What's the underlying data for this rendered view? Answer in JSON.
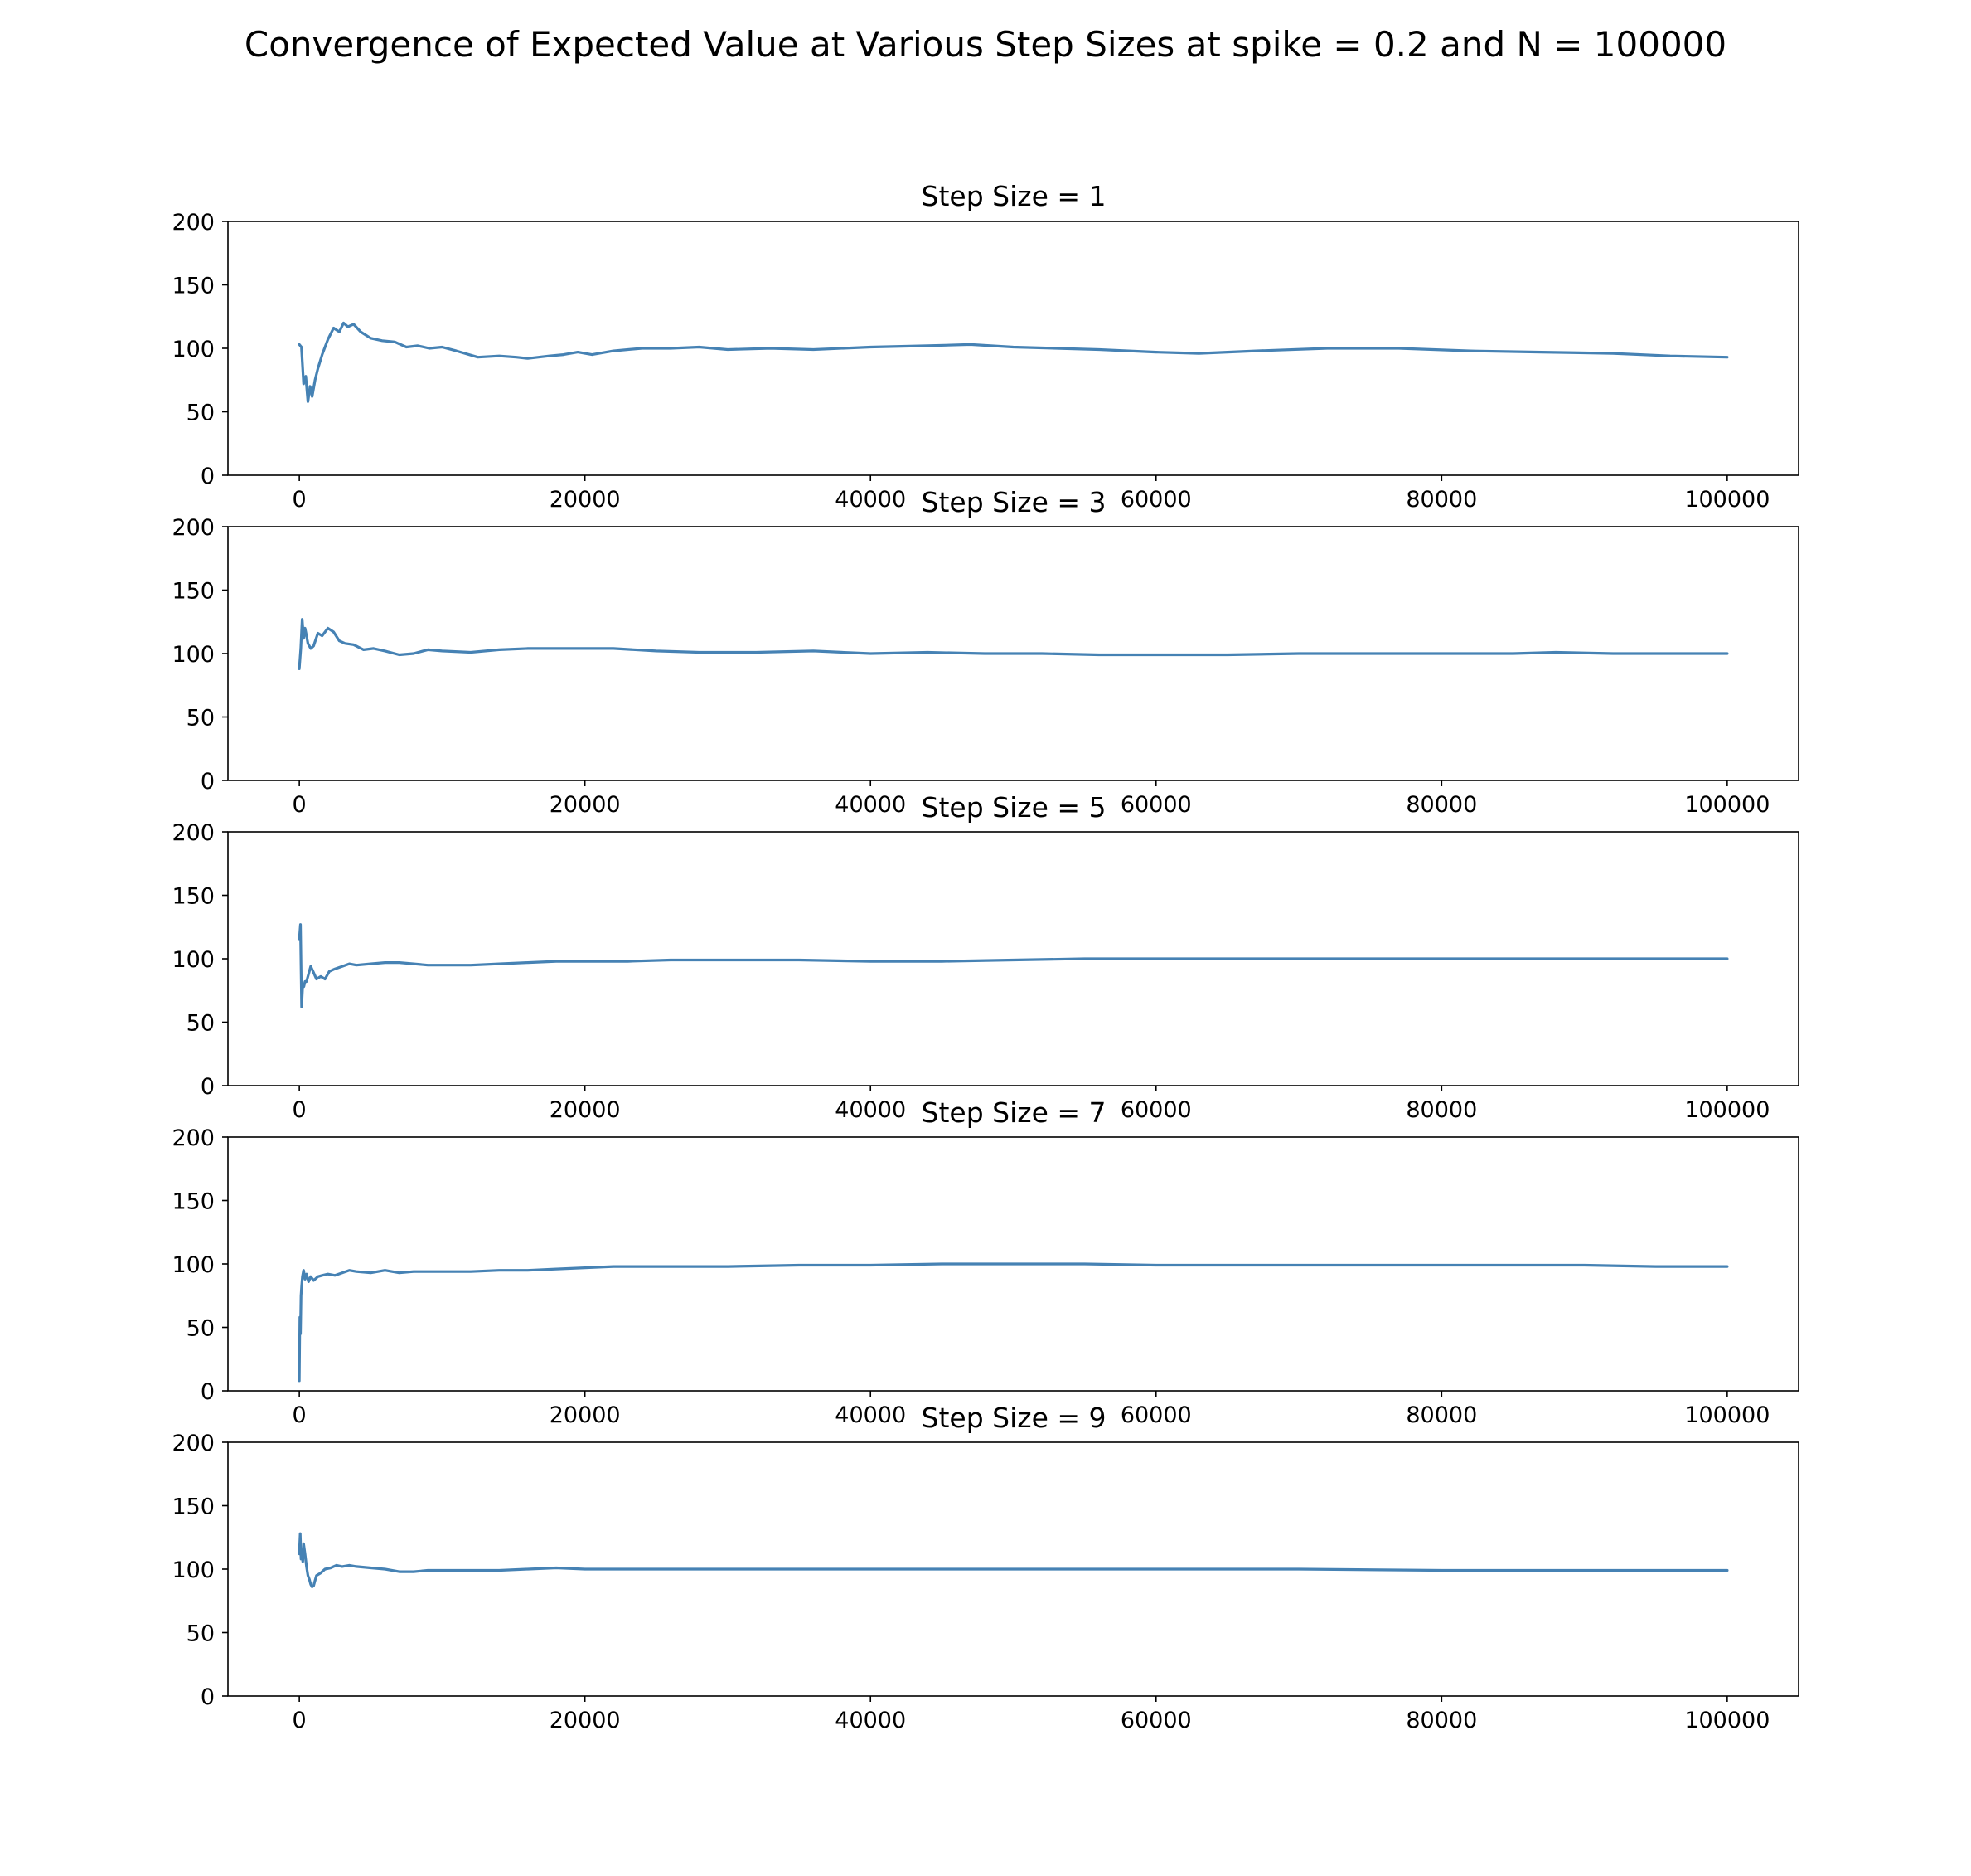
{
  "figure": {
    "title": "Convergence of Expected Value at Various Step Sizes at spike = 0.2 and N = 100000",
    "line_color": "#4682b4"
  },
  "chart_data": [
    {
      "type": "line",
      "title": "Step Size = 1",
      "xlabel": "",
      "ylabel": "",
      "xlim": [
        -5000,
        105000
      ],
      "ylim": [
        0,
        200
      ],
      "xticks": [
        0,
        20000,
        40000,
        60000,
        80000,
        100000
      ],
      "yticks": [
        0,
        50,
        100,
        150,
        200
      ],
      "grid": false,
      "x": [
        0,
        150,
        300,
        450,
        600,
        750,
        900,
        1100,
        1300,
        1600,
        2000,
        2400,
        2800,
        3100,
        3400,
        3800,
        4300,
        5000,
        5800,
        6700,
        7500,
        8300,
        9100,
        10000,
        11000,
        12500,
        14000,
        15200,
        16000,
        17500,
        18500,
        19500,
        20500,
        22000,
        24000,
        26000,
        28000,
        30000,
        33000,
        36000,
        40000,
        44000,
        47000,
        50000,
        53000,
        56000,
        60000,
        63000,
        67000,
        72000,
        77000,
        82000,
        87000,
        92000,
        96000,
        100000
      ],
      "values": [
        103,
        101,
        72,
        78,
        58,
        70,
        62,
        75,
        84,
        95,
        107,
        116,
        113,
        120,
        117,
        119,
        113,
        108,
        106,
        105,
        101,
        102,
        100,
        101,
        98,
        93,
        94,
        93,
        92,
        94,
        95,
        97,
        95,
        98,
        100,
        100,
        101,
        99,
        100,
        99,
        101,
        102,
        103,
        101,
        100,
        99,
        97,
        96,
        98,
        100,
        100,
        98,
        97,
        96,
        94,
        93
      ],
      "series_name": "series-1"
    },
    {
      "type": "line",
      "title": "Step Size = 3",
      "xlabel": "",
      "ylabel": "",
      "xlim": [
        -5000,
        105000
      ],
      "ylim": [
        0,
        200
      ],
      "xticks": [
        0,
        20000,
        40000,
        60000,
        80000,
        100000
      ],
      "yticks": [
        0,
        50,
        100,
        150,
        200
      ],
      "grid": false,
      "x": [
        0,
        100,
        200,
        300,
        400,
        500,
        600,
        800,
        1000,
        1300,
        1600,
        2000,
        2400,
        2800,
        3200,
        3800,
        4500,
        5200,
        6000,
        7000,
        8000,
        9000,
        10000,
        12000,
        14000,
        16000,
        18000,
        20000,
        22000,
        25000,
        28000,
        32000,
        36000,
        40000,
        44000,
        48000,
        52000,
        56000,
        60000,
        65000,
        70000,
        75000,
        80000,
        85000,
        88000,
        92000,
        96000,
        100000
      ],
      "values": [
        88,
        104,
        127,
        112,
        120,
        114,
        108,
        104,
        106,
        116,
        114,
        120,
        117,
        110,
        108,
        107,
        103,
        104,
        102,
        99,
        100,
        103,
        102,
        101,
        103,
        104,
        104,
        104,
        104,
        102,
        101,
        101,
        102,
        100,
        101,
        100,
        100,
        99,
        99,
        99,
        100,
        100,
        100,
        100,
        101,
        100,
        100,
        100
      ],
      "series_name": "series-1"
    },
    {
      "type": "line",
      "title": "Step Size = 5",
      "xlabel": "",
      "ylabel": "",
      "xlim": [
        -5000,
        105000
      ],
      "ylim": [
        0,
        200
      ],
      "xticks": [
        0,
        20000,
        40000,
        60000,
        80000,
        100000
      ],
      "yticks": [
        0,
        50,
        100,
        150,
        200
      ],
      "grid": false,
      "x": [
        0,
        80,
        160,
        240,
        320,
        400,
        500,
        650,
        800,
        1000,
        1200,
        1500,
        1800,
        2100,
        2500,
        3000,
        3500,
        4000,
        5000,
        6000,
        7000,
        8000,
        9000,
        10000,
        12000,
        14000,
        16000,
        18000,
        20000,
        23000,
        26000,
        30000,
        35000,
        40000,
        45000,
        50000,
        55000,
        60000,
        65000,
        70000,
        75000,
        80000,
        90000,
        100000
      ],
      "values": [
        115,
        127,
        62,
        80,
        78,
        82,
        82,
        88,
        94,
        89,
        84,
        86,
        84,
        90,
        92,
        94,
        96,
        95,
        96,
        97,
        97,
        96,
        95,
        95,
        95,
        96,
        97,
        98,
        98,
        98,
        99,
        99,
        99,
        98,
        98,
        99,
        100,
        100,
        100,
        100,
        100,
        100,
        100,
        100
      ],
      "series_name": "series-1"
    },
    {
      "type": "line",
      "title": "Step Size = 7",
      "xlabel": "",
      "ylabel": "",
      "xlim": [
        -5000,
        105000
      ],
      "ylim": [
        0,
        200
      ],
      "xticks": [
        0,
        20000,
        40000,
        60000,
        80000,
        100000
      ],
      "yticks": [
        0,
        50,
        100,
        150,
        200
      ],
      "grid": false,
      "x": [
        0,
        40,
        80,
        120,
        160,
        220,
        300,
        400,
        500,
        650,
        800,
        1000,
        1300,
        1600,
        2000,
        2500,
        3000,
        3500,
        4000,
        5000,
        6000,
        7000,
        8000,
        9000,
        10000,
        12000,
        14000,
        16000,
        18000,
        20000,
        22000,
        26000,
        30000,
        35000,
        40000,
        45000,
        50000,
        55000,
        60000,
        65000,
        70000,
        75000,
        80000,
        85000,
        90000,
        95000,
        100000
      ],
      "values": [
        8,
        58,
        45,
        75,
        82,
        90,
        95,
        88,
        92,
        86,
        90,
        87,
        90,
        91,
        92,
        91,
        93,
        95,
        94,
        93,
        95,
        93,
        94,
        94,
        94,
        94,
        95,
        95,
        96,
        97,
        98,
        98,
        98,
        99,
        99,
        100,
        100,
        100,
        99,
        99,
        99,
        99,
        99,
        99,
        99,
        98,
        98
      ],
      "series_name": "series-1"
    },
    {
      "type": "line",
      "title": "Step Size = 9",
      "xlabel": "",
      "ylabel": "",
      "xlim": [
        -5000,
        105000
      ],
      "ylim": [
        0,
        200
      ],
      "xticks": [
        0,
        20000,
        40000,
        60000,
        80000,
        100000
      ],
      "yticks": [
        0,
        50,
        100,
        150,
        200
      ],
      "grid": false,
      "x": [
        0,
        60,
        120,
        180,
        240,
        300,
        400,
        500,
        600,
        700,
        800,
        900,
        1000,
        1200,
        1500,
        1800,
        2200,
        2600,
        3000,
        3500,
        4000,
        5000,
        6000,
        7000,
        8000,
        9000,
        10000,
        12000,
        14000,
        16000,
        18000,
        20000,
        25000,
        30000,
        35000,
        40000,
        45000,
        50000,
        55000,
        60000,
        70000,
        80000,
        90000,
        100000
      ],
      "values": [
        112,
        128,
        108,
        114,
        106,
        120,
        112,
        102,
        95,
        92,
        88,
        86,
        87,
        95,
        97,
        100,
        101,
        103,
        102,
        103,
        102,
        101,
        100,
        98,
        98,
        99,
        99,
        99,
        99,
        100,
        101,
        100,
        100,
        100,
        100,
        100,
        100,
        100,
        100,
        100,
        100,
        99,
        99,
        99
      ],
      "series_name": "series-1"
    }
  ]
}
